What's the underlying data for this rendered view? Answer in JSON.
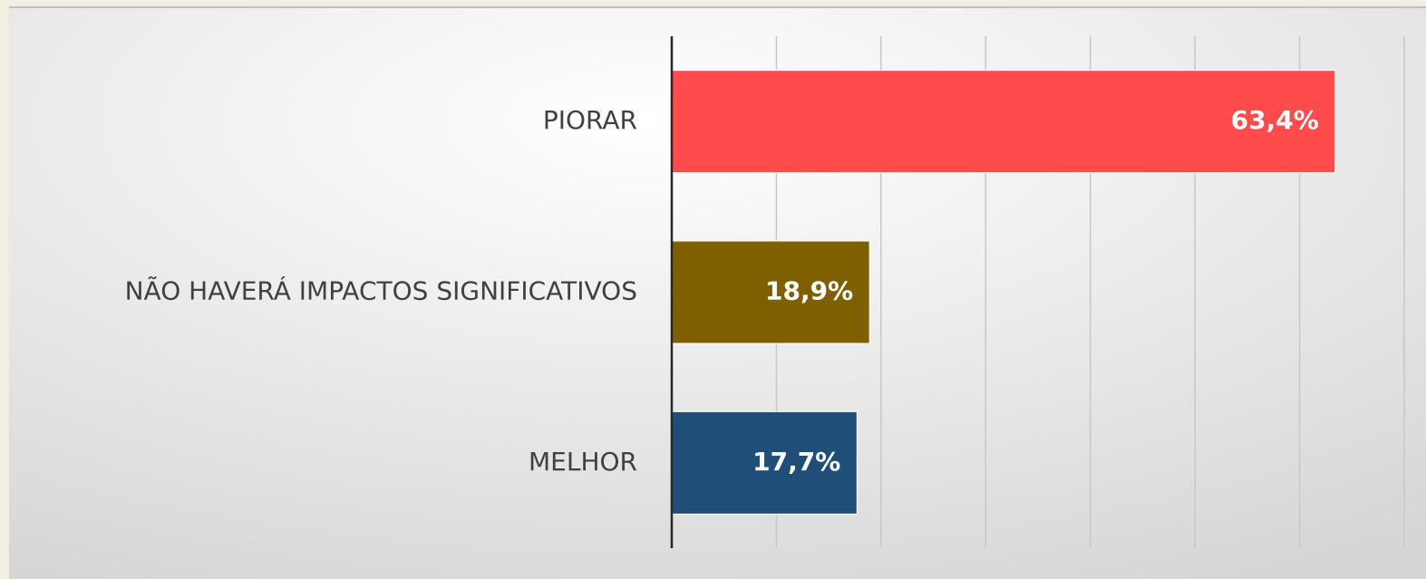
{
  "chart_data": {
    "type": "barh",
    "categories": [
      "PIORAR",
      "NÃO HAVERÁ IMPACTOS SIGNIFICATIVOS",
      "MELHOR"
    ],
    "values": [
      63.4,
      18.9,
      17.7
    ],
    "value_labels": [
      "63,4%",
      "18,9%",
      "17,7%"
    ],
    "colors": [
      "#ff4b4b",
      "#7f6000",
      "#1f4e79"
    ],
    "xlim": [
      0,
      70
    ],
    "xticks": [
      0,
      10,
      20,
      30,
      40,
      50,
      60,
      70
    ],
    "grid": true
  }
}
